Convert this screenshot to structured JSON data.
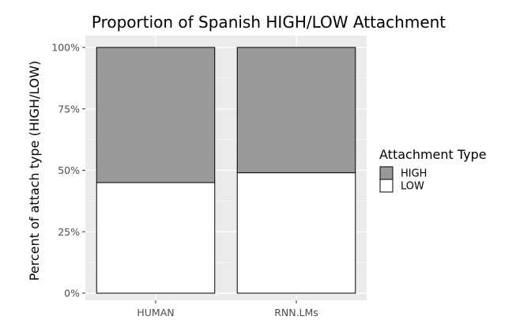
{
  "chart_data": {
    "type": "bar",
    "stacked": true,
    "normalized": true,
    "title": "Proportion of Spanish HIGH/LOW Attachment",
    "xlabel": "",
    "ylabel": "Percent of attach type (HIGH/LOW)",
    "categories": [
      "HUMAN",
      "RNN.LMs"
    ],
    "series": [
      {
        "name": "LOW",
        "values": [
          0.45,
          0.49
        ],
        "color": "#ffffff"
      },
      {
        "name": "HIGH",
        "values": [
          0.55,
          0.51
        ],
        "color": "#999999"
      }
    ],
    "ylim": [
      0,
      1
    ],
    "yticks": [
      0,
      0.25,
      0.5,
      0.75,
      1
    ],
    "ytick_labels": [
      "0%",
      "25%",
      "50%",
      "75%",
      "100%"
    ],
    "grid": true,
    "panel_background": "#ebebeb",
    "legend": {
      "title": "Attachment Type",
      "placement": "right",
      "entries": [
        {
          "label": "HIGH",
          "color": "#999999"
        },
        {
          "label": "LOW",
          "color": "#ffffff"
        }
      ]
    }
  }
}
